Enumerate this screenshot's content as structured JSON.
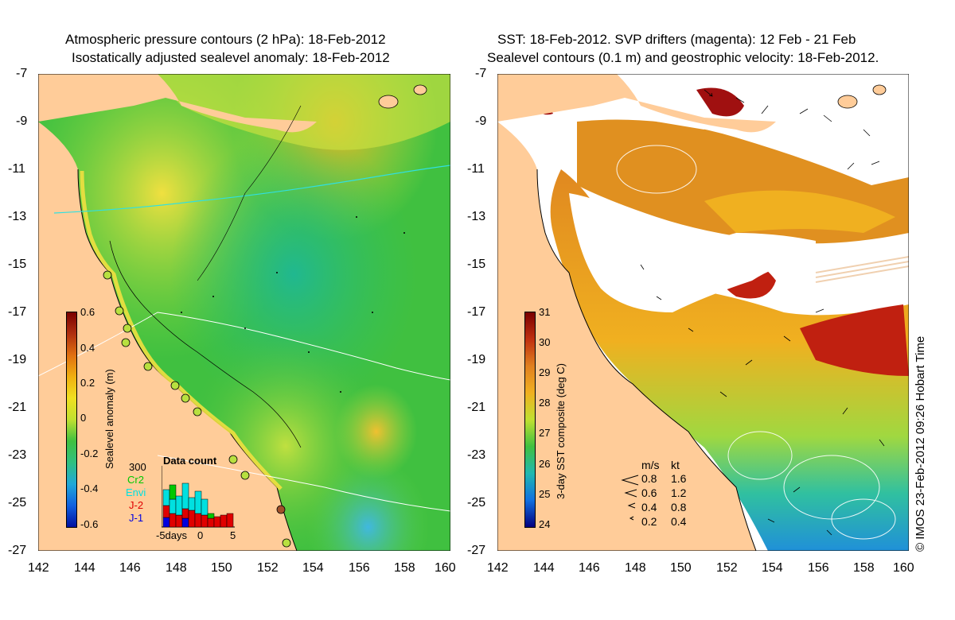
{
  "left_panel": {
    "title_line1": "Atmospheric pressure contours (2 hPa): 18-Feb-2012",
    "title_line2": "Isostatically adjusted sealevel anomaly: 18-Feb-2012",
    "y_ticks": [
      "-7",
      "-9",
      "-11",
      "-13",
      "-15",
      "-17",
      "-19",
      "-21",
      "-23",
      "-25",
      "-27"
    ],
    "x_ticks": [
      "142",
      "144",
      "146",
      "148",
      "150",
      "152",
      "154",
      "156",
      "158",
      "160"
    ],
    "colorbar": {
      "label": "Sealevel anomaly (m)",
      "ticks": [
        "0.6",
        "0.4",
        "0.2",
        "0",
        "-0.2",
        "-0.4",
        "-0.6"
      ],
      "range": [
        -0.6,
        0.6
      ]
    },
    "data_count": {
      "title": "Data count",
      "max_label": "300",
      "legend": [
        {
          "label": "Cr2",
          "color": "#00c800"
        },
        {
          "label": "Envi",
          "color": "#00e8e8"
        },
        {
          "label": "J-2",
          "color": "#e00000"
        },
        {
          "label": "J-1",
          "color": "#0000e0"
        }
      ],
      "x_ticks": [
        "-5days",
        "0",
        "5"
      ]
    },
    "colors": {
      "land": "#ffcc99",
      "coast": "#000000"
    }
  },
  "right_panel": {
    "title_line1": "SST: 18-Feb-2012. SVP drifters (magenta): 12 Feb - 21 Feb",
    "title_line2": "Sealevel contours (0.1 m) and geostrophic velocity: 18-Feb-2012.",
    "y_ticks": [
      "-7",
      "-9",
      "-11",
      "-13",
      "-15",
      "-17",
      "-19",
      "-21",
      "-23",
      "-25",
      "-27"
    ],
    "x_ticks": [
      "142",
      "144",
      "146",
      "148",
      "150",
      "152",
      "154",
      "156",
      "158",
      "160"
    ],
    "colorbar": {
      "label": "3-day SST composite (deg C)",
      "ticks": [
        "31",
        "30",
        "29",
        "28",
        "27",
        "26",
        "25",
        "24"
      ],
      "range": [
        24,
        31
      ]
    },
    "velocity_legend": {
      "header_ms": "m/s",
      "header_kt": "kt",
      "rows": [
        {
          "ms": "0.8",
          "kt": "1.6"
        },
        {
          "ms": "0.6",
          "kt": "1.2"
        },
        {
          "ms": "0.4",
          "kt": "0.8"
        },
        {
          "ms": "0.2",
          "kt": "0.4"
        }
      ]
    }
  },
  "copyright": "© IMOS 23-Feb-2012 09:26 Hobart Time"
}
